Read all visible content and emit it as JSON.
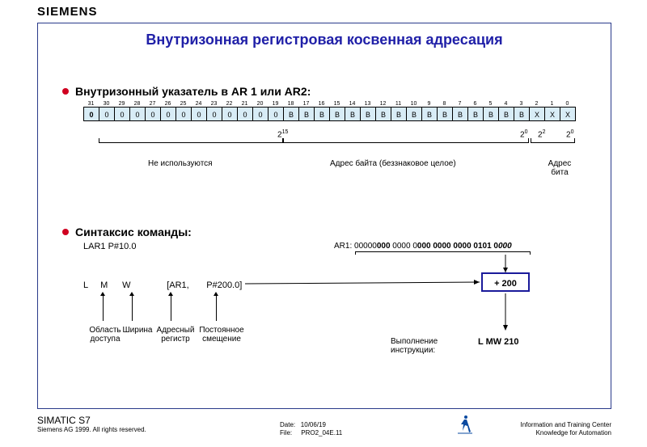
{
  "logo": "SIEMENS",
  "title": "Внутризонная регистровая косвенная адресация",
  "section1": {
    "heading": "Внутризонный указатель в AR 1 или AR2:",
    "bit_indices": [
      "31",
      "30",
      "29",
      "28",
      "27",
      "26",
      "25",
      "24",
      "23",
      "22",
      "21",
      "20",
      "19",
      "18",
      "17",
      "16",
      "15",
      "14",
      "13",
      "12",
      "11",
      "10",
      "9",
      "8",
      "7",
      "6",
      "5",
      "4",
      "3",
      "2",
      "1",
      "0"
    ],
    "bit_cells": [
      "0",
      "0",
      "0",
      "0",
      "0",
      "0",
      "0",
      "0",
      "0",
      "0",
      "0",
      "0",
      "0",
      "B",
      "B",
      "B",
      "B",
      "B",
      "B",
      "B",
      "B",
      "B",
      "B",
      "B",
      "B",
      "B",
      "B",
      "B",
      "B",
      "X",
      "X",
      "X"
    ],
    "brk_exp_left": "2",
    "brk_exp_left_sup": "15",
    "brk_exp_mid_r": "2",
    "brk_exp_mid_r_sup": "0",
    "brk_exp_r1": "2",
    "brk_exp_r1_sup": "2",
    "brk_exp_r2": "2",
    "brk_exp_r2_sup": "0",
    "label_unused": "Не используются",
    "label_byte": "Адрес байта (беззнаковое целое)",
    "label_bit": "Адрес бита"
  },
  "section2": {
    "heading": "Синтаксис команды:",
    "lar": "LAR1 P#10.0",
    "ar1_prefix": "AR1: ",
    "ar1_bits_plain": "00000",
    "ar1_bits_bold1": "000",
    "ar1_bits_plain2": " 0000 0",
    "ar1_bits_bold2": "000 0000 0000 0101 0",
    "ar1_bits_bold3": "000",
    "row_L": "L",
    "row_M": "M",
    "row_W": "W",
    "row_bracket": "[AR1,",
    "row_offset": "P#200.0]",
    "col_area_l1": "Область",
    "col_area_l2": "доступа",
    "col_width": "Ширина",
    "col_reg_l1": "Адресный",
    "col_reg_l2": "регистр",
    "col_off_l1": "Постоянное",
    "col_off_l2": "смещение",
    "plus_box": "+ 200",
    "exec_l1": "Выполнение",
    "exec_l2": "инструкции:",
    "result": "L   MW 210"
  },
  "footer": {
    "s7": "SIMATIC S7",
    "rights": "Siemens AG 1999. All rights reserved.",
    "date_lbl": "Date:",
    "date_val": "10/06/19",
    "file_lbl": "File:",
    "file_val": "PRO2_04E.11",
    "right_l1": "Information and Training Center",
    "right_l2": "Knowledge for Automation"
  },
  "colors": {
    "title": "#2020a8",
    "cell_bg": "#d8ecf6",
    "box_border": "#1a1a9a",
    "bullet": "#d00020",
    "border": "#2a3a8a"
  }
}
